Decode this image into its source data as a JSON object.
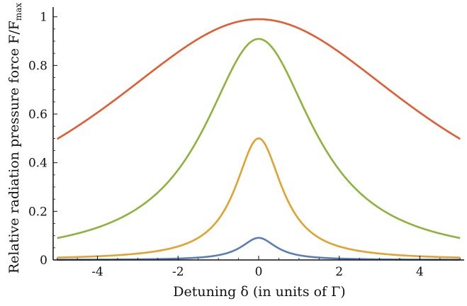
{
  "chart_data": {
    "type": "line",
    "xlabel": "Detuning δ (in units of Γ)",
    "ylabel": "Relative radiation pressure force F/F",
    "ylabel_sub": "max",
    "xlim": [
      -5.1,
      5.1
    ],
    "ylim": [
      0,
      1.04
    ],
    "xticks": [
      -4,
      -2,
      0,
      2,
      4
    ],
    "xtick_labels": [
      "-4",
      "-2",
      "0",
      "2",
      "4"
    ],
    "yticks": [
      0,
      0.2,
      0.4,
      0.6,
      0.8,
      1
    ],
    "ytick_labels": [
      "0",
      "0.2",
      "0.4",
      "0.6",
      "0.8",
      "1"
    ],
    "grid": false,
    "legend": "none",
    "series": [
      {
        "saturation_parameter": 0.1,
        "color": "#5b7fb5",
        "x": [
          -5,
          -4,
          -3,
          -2,
          -1.5,
          -1,
          -0.5,
          0,
          0.5,
          1,
          1.5,
          2,
          3,
          4,
          5
        ],
        "y": [
          0.0005,
          0.0008,
          0.0014,
          0.003,
          0.0055,
          0.0123,
          0.0417,
          0.0909,
          0.0417,
          0.0123,
          0.0055,
          0.003,
          0.0014,
          0.0008,
          0.0005
        ]
      },
      {
        "saturation_parameter": 1,
        "color": "#e3a12f",
        "x": [
          -5,
          -4,
          -3,
          -2,
          -1.5,
          -1,
          -0.5,
          0,
          0.5,
          1,
          1.5,
          2,
          3,
          4,
          5
        ],
        "y": [
          0.0049,
          0.0077,
          0.0137,
          0.0303,
          0.0526,
          0.1111,
          0.3333,
          0.5,
          0.3333,
          0.1111,
          0.0526,
          0.0303,
          0.0137,
          0.0077,
          0.0049
        ]
      },
      {
        "saturation_parameter": 10,
        "color": "#8db33a",
        "x": [
          -5,
          -4,
          -3,
          -2,
          -1.5,
          -1,
          -0.5,
          0,
          0.5,
          1,
          1.5,
          2,
          3,
          4,
          5
        ],
        "y": [
          0.0893,
          0.1333,
          0.2174,
          0.3846,
          0.5263,
          0.7143,
          0.8696,
          0.9091,
          0.8696,
          0.7143,
          0.5263,
          0.3846,
          0.2174,
          0.1333,
          0.0893
        ]
      },
      {
        "saturation_parameter": 100,
        "color": "#e55b2f",
        "x": [
          -5,
          -4,
          -3,
          -2,
          -1.5,
          -1,
          -0.5,
          0,
          0.5,
          1,
          1.5,
          2,
          3,
          4,
          5
        ],
        "y": [
          0.4975,
          0.6079,
          0.7337,
          0.8621,
          0.9174,
          0.9612,
          0.9803,
          0.9901,
          0.9803,
          0.9612,
          0.9174,
          0.8621,
          0.7337,
          0.6079,
          0.4975
        ]
      }
    ]
  }
}
